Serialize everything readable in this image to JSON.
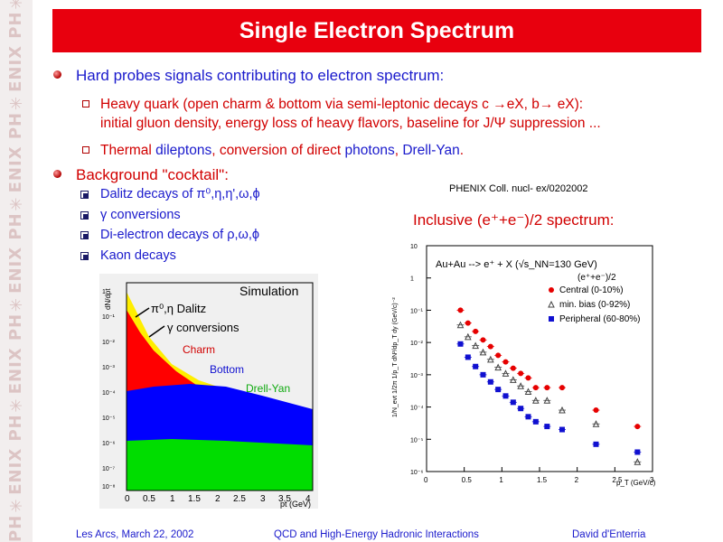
{
  "sidebar": {
    "logo_text": "PH✳ENIX PH✳ENIX PH✳ENIX PH✳ENIX PH✳ENIX PH✳ENIX"
  },
  "title": "Single Electron Spectrum",
  "bullets": [
    {
      "text_parts": [
        "Hard probes signals contributing to electron spectrum:"
      ],
      "subs": [
        {
          "line1": "Heavy quark (open charm & bottom via semi-leptonic decays c →eX, b→ eX):",
          "line2": "initial gluon density, energy loss of heavy flavors, baseline for J/Ψ suppression ..."
        },
        {
          "parts": [
            "Thermal ",
            "dileptons",
            ", conversion of direct ",
            "photons",
            ", ",
            "Drell-Yan",
            "."
          ]
        }
      ]
    },
    {
      "text": "Background \"cocktail\":",
      "subs": [
        "Dalitz decays of π⁰,η,η',ω,ϕ",
        "γ conversions",
        "Di-electron decays of ρ,ω,ϕ",
        "Kaon decays"
      ]
    }
  ],
  "reference": "PHENIX Coll. nucl- ex/0202002",
  "right_heading": "Inclusive (e⁺+e⁻)/2 spectrum:",
  "sim_figure": {
    "title": "Simulation",
    "ylabel": "dN/dpt",
    "xlabel": "pt (GeV)",
    "x_ticks": [
      "0",
      "0.5",
      "1",
      "1.5",
      "2",
      "2.5",
      "3",
      "3.5",
      "4"
    ],
    "y_ticks": [
      "1",
      "10⁻¹",
      "10⁻²",
      "10⁻³",
      "10⁻⁴",
      "10⁻⁵",
      "10⁻⁶",
      "10⁻⁷",
      "10⁻⁸"
    ],
    "labels": {
      "dalitz": "π⁰,η Dalitz",
      "conv": "γ conversions",
      "charm": "Charm",
      "bottom": "Bottom",
      "dy": "Drell-Yan"
    },
    "colors": {
      "yellow": "#ffee00",
      "red": "#ff0000",
      "blue": "#0000ff",
      "green": "#00dd00"
    }
  },
  "chart_data": {
    "type": "scatter",
    "title": "Au+Au --> e⁺ + X (√s_NN=130 GeV)",
    "subtitle": "(e⁺+e⁻)/2",
    "xlabel": "p_T (GeV/c)",
    "ylabel": "1/N_evt 1/2π 1/p_T dN²/dp_T dy (GeV/c)⁻²",
    "x_ticks": [
      "0",
      "0.5",
      "1",
      "1.5",
      "2",
      "2.5",
      "3"
    ],
    "y_ticks": [
      "10",
      "1",
      "10⁻¹",
      "10⁻²",
      "10⁻³",
      "10⁻⁴",
      "10⁻⁵",
      "10⁻⁶"
    ],
    "xlim": [
      0,
      3
    ],
    "ylog": true,
    "ylim": [
      1e-06,
      10
    ],
    "legend_position": "top-right",
    "series": [
      {
        "name": "Central",
        "centrality": "(0-10%)",
        "color": "#e60000",
        "marker": "circle",
        "x": [
          0.45,
          0.55,
          0.65,
          0.75,
          0.85,
          0.95,
          1.05,
          1.15,
          1.25,
          1.35,
          1.45,
          1.6,
          1.8,
          2.25,
          2.8
        ],
        "y": [
          0.1,
          0.04,
          0.022,
          0.012,
          0.0075,
          0.004,
          0.0025,
          0.0016,
          0.0011,
          0.0008,
          0.0004,
          0.0004,
          0.0004,
          8e-05,
          2.5e-05
        ]
      },
      {
        "name": "min. bias",
        "centrality": "(0-92%)",
        "color": "#444444",
        "marker": "triangle",
        "x": [
          0.45,
          0.55,
          0.65,
          0.75,
          0.85,
          0.95,
          1.05,
          1.15,
          1.25,
          1.35,
          1.45,
          1.6,
          1.8,
          2.25,
          2.8
        ],
        "y": [
          0.035,
          0.015,
          0.008,
          0.005,
          0.003,
          0.0017,
          0.0011,
          0.0007,
          0.00045,
          0.0003,
          0.00016,
          0.00016,
          8e-05,
          3e-05,
          2e-06
        ]
      },
      {
        "name": "Peripheral",
        "centrality": "(60-80%)",
        "color": "#1010d0",
        "marker": "square",
        "x": [
          0.45,
          0.55,
          0.65,
          0.75,
          0.85,
          0.95,
          1.05,
          1.15,
          1.25,
          1.35,
          1.45,
          1.6,
          1.8,
          2.25,
          2.8
        ],
        "y": [
          0.009,
          0.0035,
          0.0018,
          0.001,
          0.0006,
          0.00035,
          0.00022,
          0.00014,
          9e-05,
          5e-05,
          3.5e-05,
          2.5e-05,
          2e-05,
          7e-06,
          4e-06
        ]
      }
    ]
  },
  "footer": {
    "left": "Les Arcs, March 22, 2002",
    "center": "QCD and High-Energy Hadronic Interactions",
    "right": "David d'Enterria"
  }
}
